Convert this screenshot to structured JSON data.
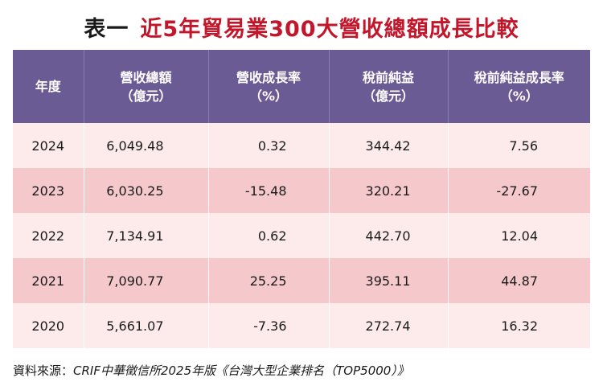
{
  "title": {
    "label": "表一",
    "main": "近5年貿易業300大營收總額成長比較"
  },
  "table": {
    "headers": [
      {
        "line1": "年度",
        "line2": ""
      },
      {
        "line1": "營收總額",
        "line2": "（億元）"
      },
      {
        "line1": "營收成長率",
        "line2": "（%）"
      },
      {
        "line1": "稅前純益",
        "line2": "（億元）"
      },
      {
        "line1": "稅前純益成長率",
        "line2": "（%）"
      }
    ],
    "rows": [
      {
        "year": "2024",
        "revenue": "6,049.48",
        "revenue_growth": "0.32",
        "pretax_profit": "344.42",
        "profit_growth": "7.56"
      },
      {
        "year": "2023",
        "revenue": "6,030.25",
        "revenue_growth": "-15.48",
        "pretax_profit": "320.21",
        "profit_growth": "-27.67"
      },
      {
        "year": "2022",
        "revenue": "7,134.91",
        "revenue_growth": "0.62",
        "pretax_profit": "442.70",
        "profit_growth": "12.04"
      },
      {
        "year": "2021",
        "revenue": "7,090.77",
        "revenue_growth": "25.25",
        "pretax_profit": "395.11",
        "profit_growth": "44.87"
      },
      {
        "year": "2020",
        "revenue": "5,661.07",
        "revenue_growth": "-7.36",
        "pretax_profit": "272.74",
        "profit_growth": "16.32"
      }
    ]
  },
  "source": {
    "label": "資料來源：",
    "text": "CRIF中華徵信所2025年版《台灣大型企業排名（TOP5000）》"
  },
  "colors": {
    "title_accent": "#c4162a",
    "header_bg": "#6b5b95",
    "row_light": "#fdeaea",
    "row_dark": "#f5c8cb"
  }
}
